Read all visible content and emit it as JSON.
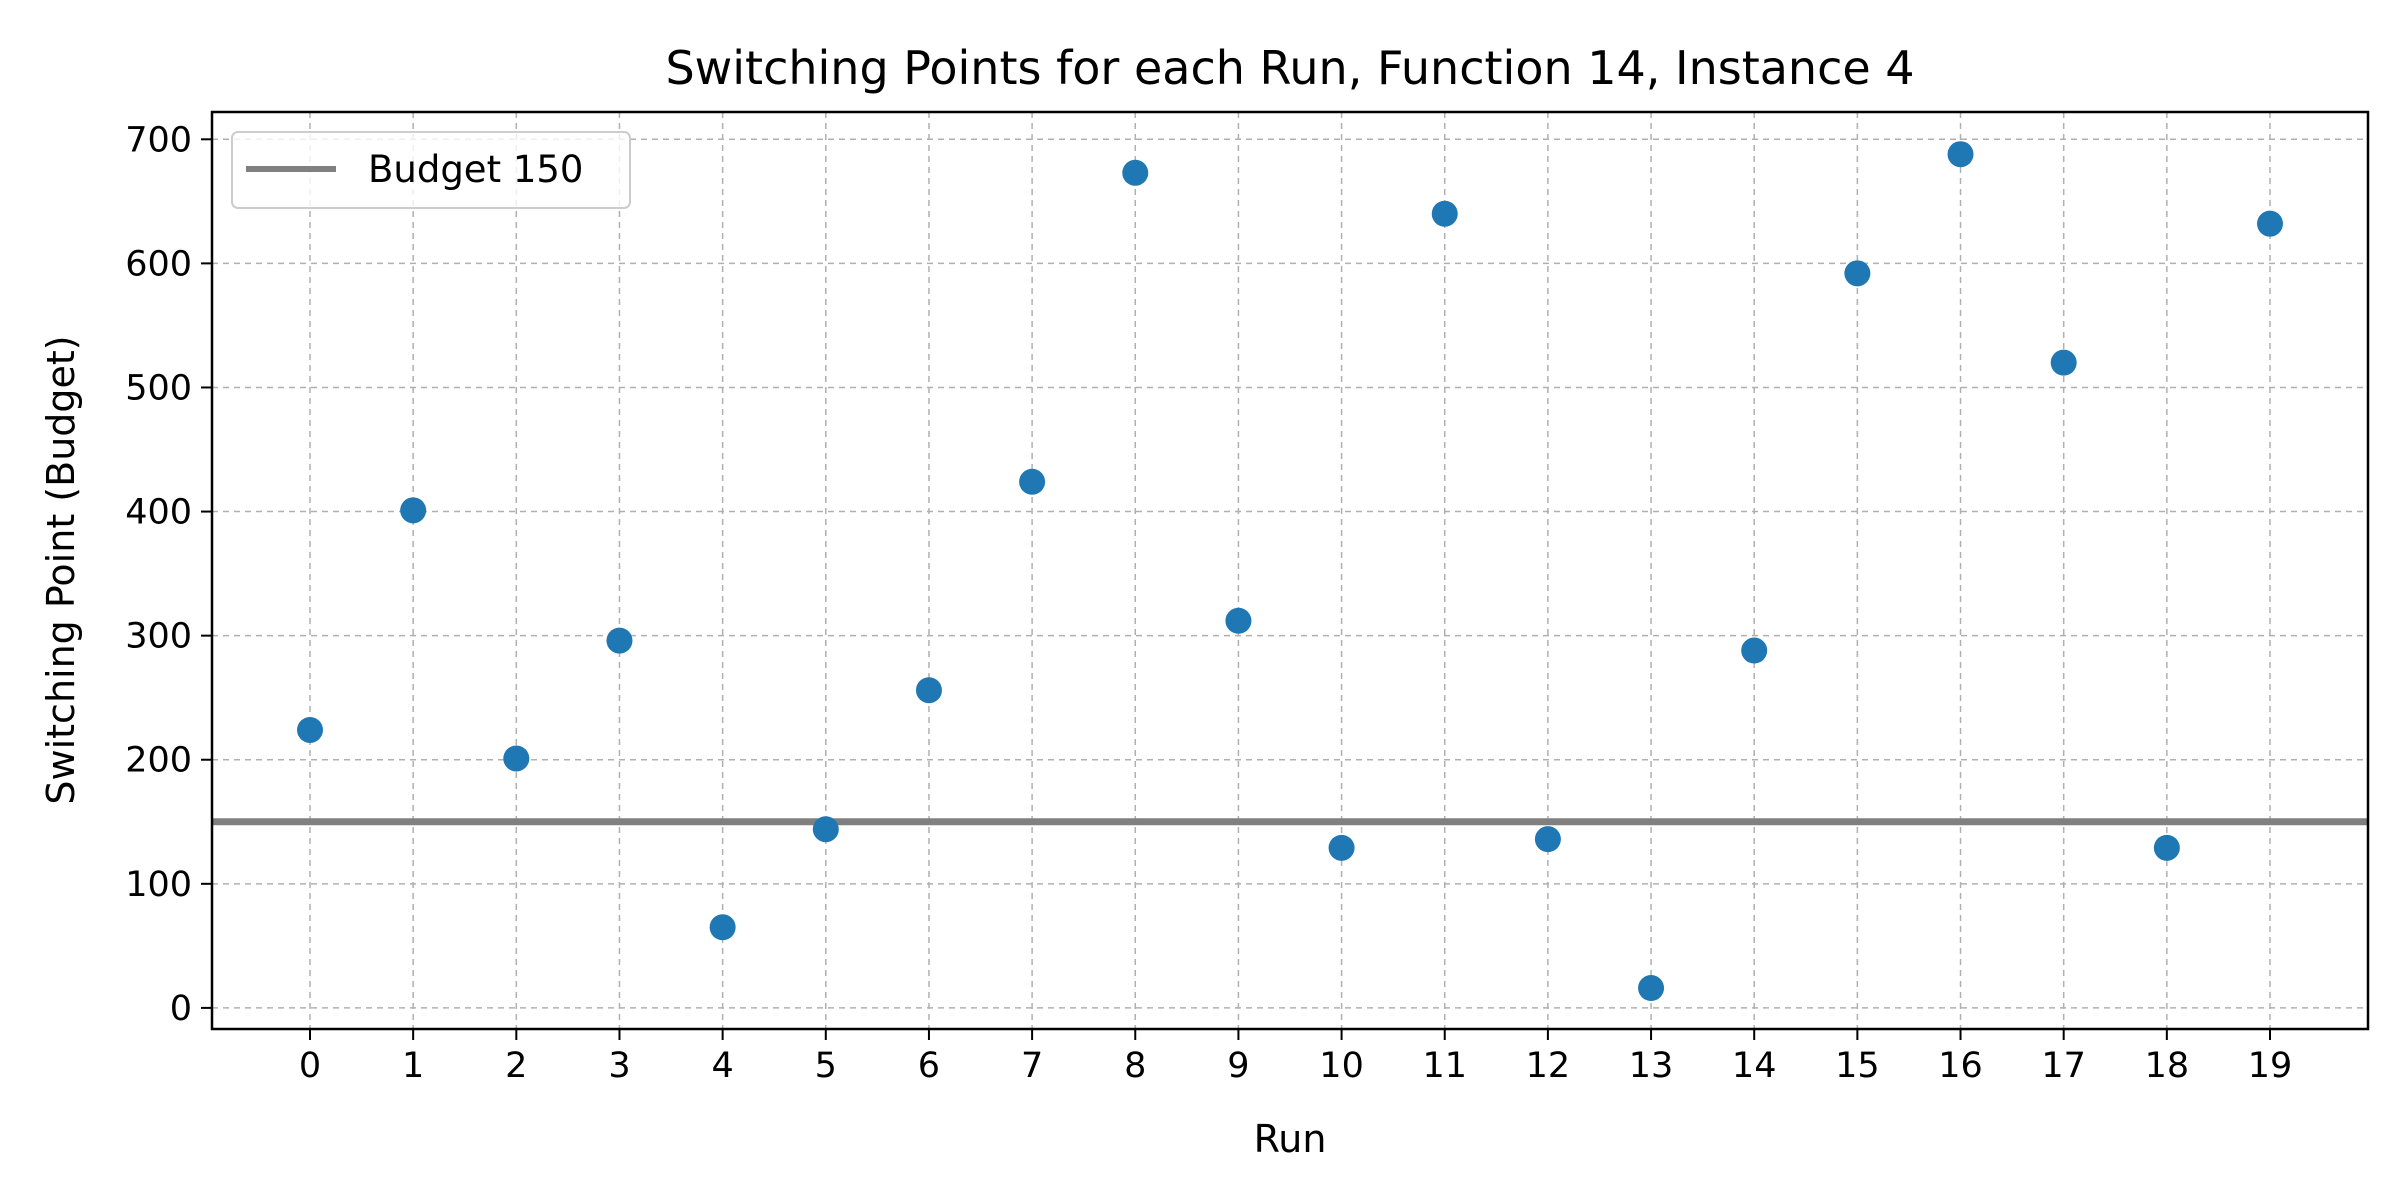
{
  "chart_data": {
    "type": "scatter",
    "title": "Switching Points for each Run, Function 14, Instance 4",
    "xlabel": "Run",
    "ylabel": "Switching Point (Budget)",
    "x": [
      0,
      1,
      2,
      3,
      4,
      5,
      6,
      7,
      8,
      9,
      10,
      11,
      12,
      13,
      14,
      15,
      16,
      17,
      18,
      19
    ],
    "y": [
      224,
      401,
      201,
      296,
      65,
      144,
      256,
      424,
      673,
      312,
      129,
      640,
      136,
      16,
      288,
      592,
      688,
      520,
      129,
      632
    ],
    "x_ticks": [
      "0",
      "1",
      "2",
      "3",
      "4",
      "5",
      "6",
      "7",
      "8",
      "9",
      "10",
      "11",
      "12",
      "13",
      "14",
      "15",
      "16",
      "17",
      "18",
      "19"
    ],
    "y_ticks": [
      "0",
      "100",
      "200",
      "300",
      "400",
      "500",
      "600",
      "700"
    ],
    "xlim": [
      -0.95,
      19.95
    ],
    "ylim": [
      -17,
      722
    ],
    "grid": true,
    "reference_line": {
      "label": "Budget 150",
      "y": 150,
      "color": "#808080"
    },
    "marker_color": "#1f77b4",
    "legend_position": "top-left"
  }
}
